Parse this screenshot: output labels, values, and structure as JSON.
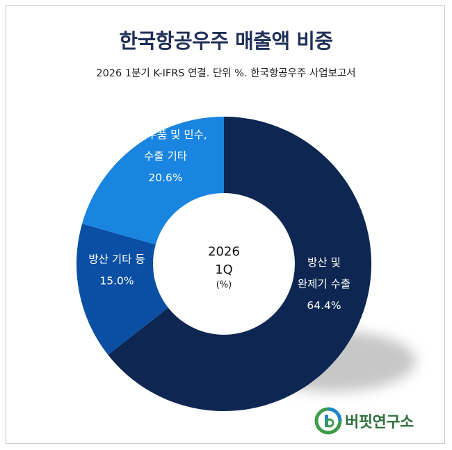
{
  "chart_data": {
    "type": "pie",
    "title": "한국항공우주 매출액 비중",
    "subtitle": "2026 1분기 K-IFRS 연결. 단위 %. 한국항공우주 사업보고서",
    "center_label": {
      "line1": "2026",
      "line2": "1Q",
      "unit": "(%)"
    },
    "slices": [
      {
        "label_lines": [
          "방산 및",
          "완제기 수출"
        ],
        "value": 64.4,
        "value_text": "64.4%",
        "color": "#0d2752"
      },
      {
        "label_lines": [
          "방산 기타 등"
        ],
        "value": 15.0,
        "value_text": "15.0%",
        "color": "#0a4fa3"
      },
      {
        "label_lines": [
          "기체 부품 및 민수,",
          "수출 기타"
        ],
        "value": 20.6,
        "value_text": "20.6%",
        "color": "#1a85e0"
      }
    ]
  },
  "logo": {
    "text": "버핏연구소"
  }
}
